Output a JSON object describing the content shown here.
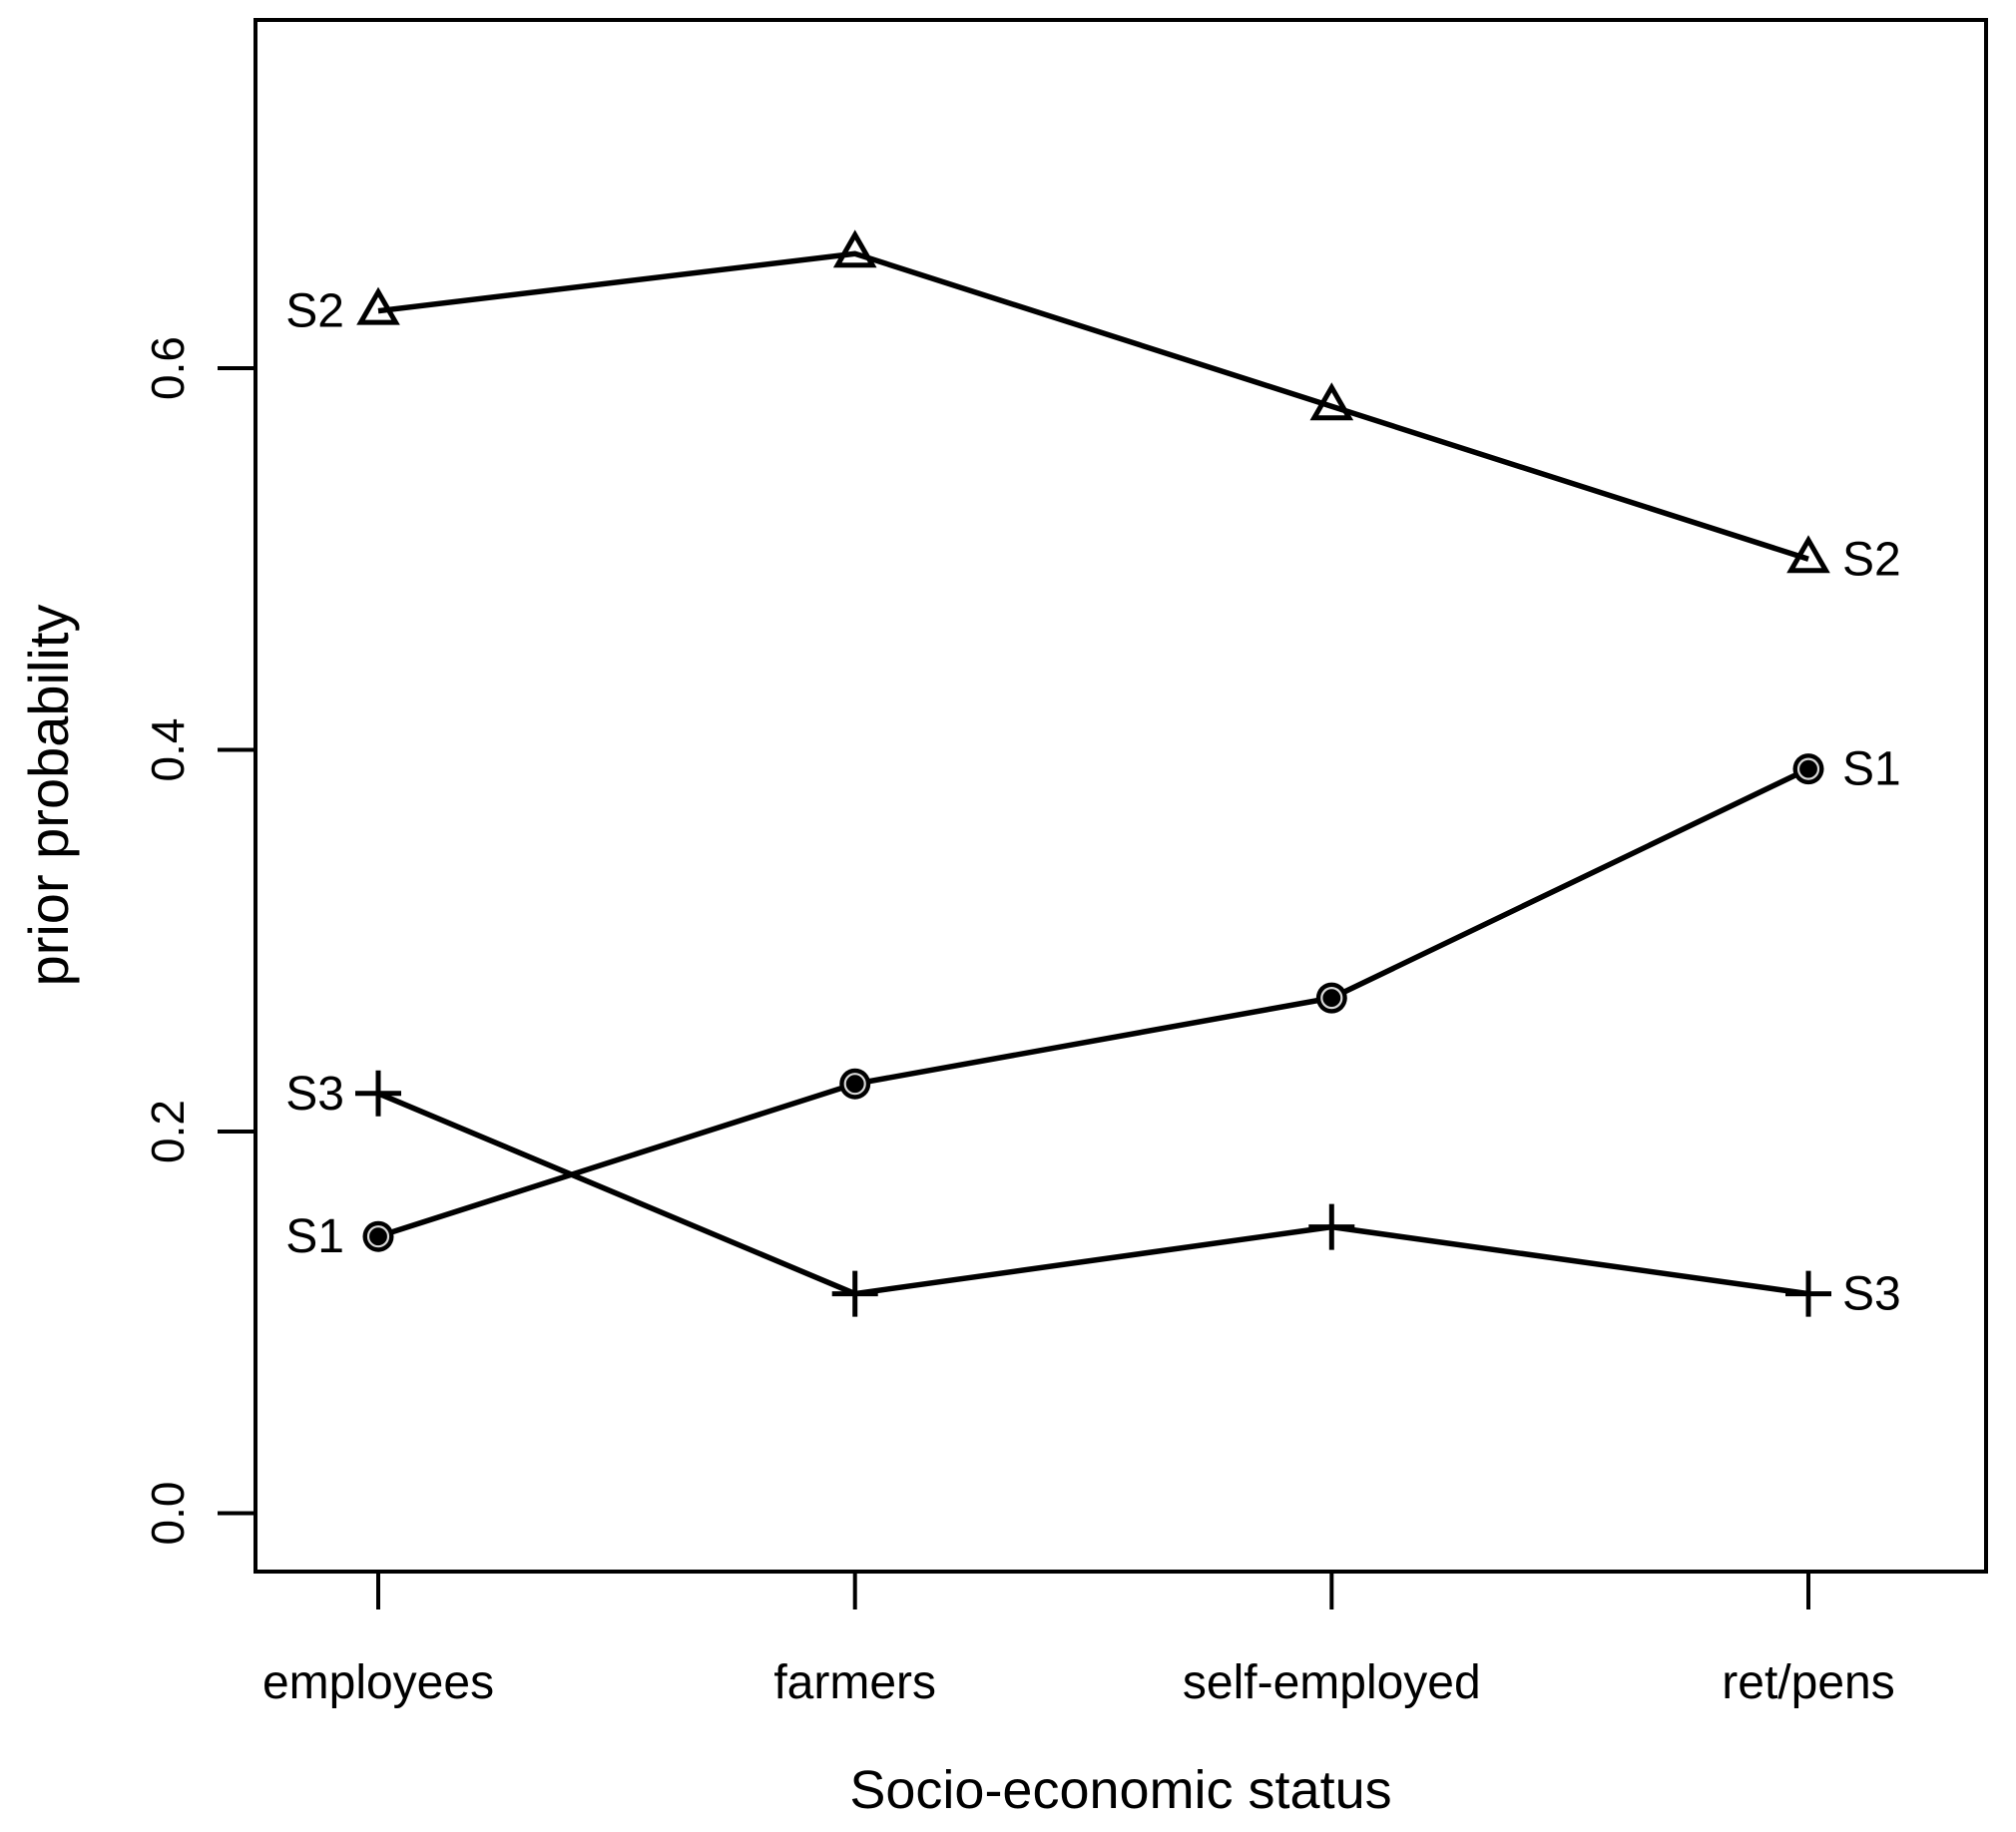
{
  "figure": {
    "background_color": "#ffffff",
    "line_color": "#000000"
  },
  "chart_data": {
    "type": "line",
    "title": "",
    "xlabel": "Socio-economic status",
    "ylabel": "prior probability",
    "categories": [
      "employees",
      "farmers",
      "self-employed",
      "ret/pens"
    ],
    "series": [
      {
        "name": "S1",
        "marker": "filled-circle",
        "values": [
          0.145,
          0.225,
          0.27,
          0.39
        ]
      },
      {
        "name": "S2",
        "marker": "open-triangle",
        "values": [
          0.63,
          0.66,
          0.58,
          0.5
        ]
      },
      {
        "name": "S3",
        "marker": "plus",
        "values": [
          0.22,
          0.115,
          0.15,
          0.115
        ]
      }
    ],
    "yticks": [
      "0.0",
      "0.2",
      "0.4",
      "0.6"
    ],
    "ylim": [
      -0.03,
      0.78
    ],
    "grid": false,
    "legend": "series name labels drawn at both ends of each line"
  }
}
